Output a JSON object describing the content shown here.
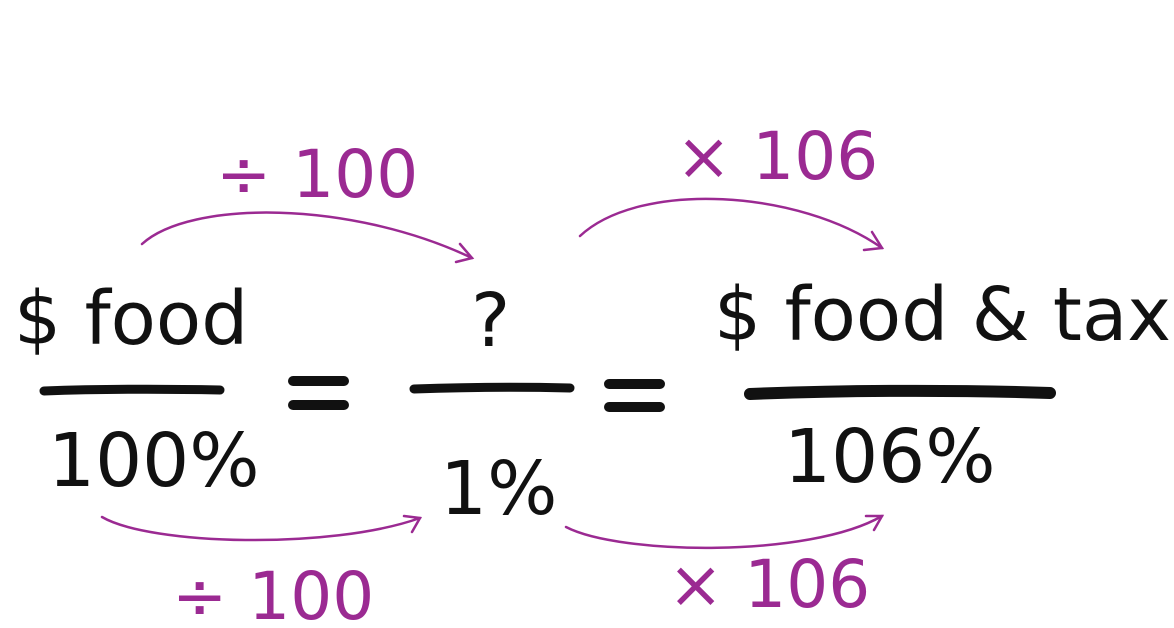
{
  "fractions": [
    {
      "numerator": "$ food",
      "denominator": "100%"
    },
    {
      "numerator": "?",
      "denominator": "1%"
    },
    {
      "numerator": "$ food & tax",
      "denominator": "106%"
    }
  ],
  "equals": [
    "=",
    "="
  ],
  "operations": {
    "top_left": "÷ 100",
    "bottom_left": "÷ 100",
    "top_right": "× 106",
    "bottom_right": "× 106"
  },
  "colors": {
    "ink": "#111111",
    "accent": "#9b2a92"
  }
}
